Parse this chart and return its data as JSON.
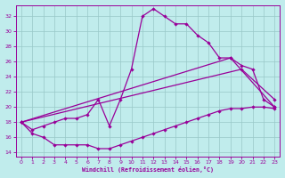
{
  "xlabel": "Windchill (Refroidissement éolien,°C)",
  "bg_color": "#c0ecec",
  "grid_color": "#98c8c8",
  "line_color": "#990099",
  "xlim": [
    -0.5,
    23.5
  ],
  "ylim": [
    13.5,
    33.5
  ],
  "yticks": [
    14,
    16,
    18,
    20,
    22,
    24,
    26,
    28,
    30,
    32
  ],
  "xticks": [
    0,
    1,
    2,
    3,
    4,
    5,
    6,
    7,
    8,
    9,
    10,
    11,
    12,
    13,
    14,
    15,
    16,
    17,
    18,
    19,
    20,
    21,
    22,
    23
  ],
  "line1_x": [
    0,
    1,
    2,
    3,
    4,
    5,
    6,
    7,
    8,
    9,
    10,
    11,
    12,
    13,
    14,
    15,
    16,
    17,
    18,
    19,
    20,
    21,
    22,
    23
  ],
  "line1_y": [
    18,
    16.5,
    16,
    15,
    15,
    15,
    15,
    14.5,
    14.5,
    15,
    15.5,
    16,
    16.5,
    17,
    17.5,
    18,
    18.5,
    19,
    19.5,
    19.8,
    19.8,
    20,
    20,
    19.8
  ],
  "line2_x": [
    0,
    1,
    2,
    3,
    4,
    5,
    6,
    7,
    8,
    9,
    10,
    11,
    12,
    13,
    14,
    15,
    16,
    17,
    18,
    19,
    20,
    21,
    22,
    23
  ],
  "line2_y": [
    18,
    17,
    17.5,
    18,
    18.5,
    18.5,
    19,
    21,
    17.5,
    21,
    25,
    32,
    33,
    32,
    31,
    31,
    29.5,
    28.5,
    26.5,
    26.5,
    25.5,
    25,
    21,
    20
  ],
  "line3_x": [
    0,
    19,
    23
  ],
  "line3_y": [
    18,
    26.5,
    20
  ],
  "line4_x": [
    0,
    20,
    23
  ],
  "line4_y": [
    18,
    25,
    21
  ]
}
